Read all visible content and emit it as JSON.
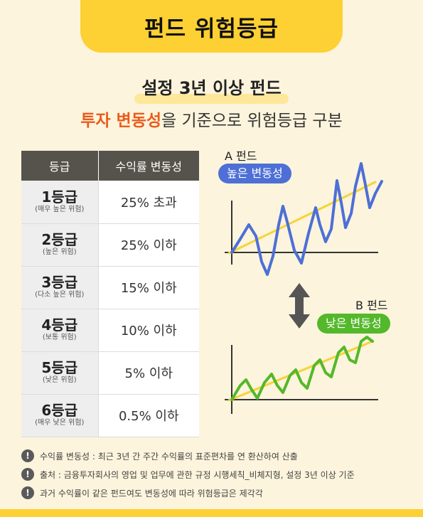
{
  "header": {
    "title": "펀드 위험등급"
  },
  "subtitle": "설정 3년 이상 펀드",
  "tagline": {
    "highlight": "투자 변동성",
    "rest": "을 기준으로 위험등급 구분"
  },
  "table": {
    "headers": [
      "등급",
      "수익률 변동성"
    ],
    "rows": [
      {
        "grade": "1등급",
        "desc": "(매우 높은 위험)",
        "value": "25% 초과"
      },
      {
        "grade": "2등급",
        "desc": "(높은 위험)",
        "value": "25% 이하"
      },
      {
        "grade": "3등급",
        "desc": "(다소 높은 위험)",
        "value": "15% 이하"
      },
      {
        "grade": "4등급",
        "desc": "(보통 위험)",
        "value": "10% 이하"
      },
      {
        "grade": "5등급",
        "desc": "(낮은 위험)",
        "value": "5% 이하"
      },
      {
        "grade": "6등급",
        "desc": "(매우 낮은 위험)",
        "value": "0.5% 이하"
      }
    ]
  },
  "fund_a": {
    "name": "A 펀드",
    "pill": "높은 변동성",
    "color": "#4d6fd6"
  },
  "fund_b": {
    "name": "B 펀드",
    "pill": "낮은 변동성",
    "color": "#54b82b"
  },
  "trend_color": "#f5d33a",
  "compare_icon": "up-down-arrow-icon",
  "notes": [
    "수익률 변동성 : 최근 3년 간 주간 수익률의 표준편차를 연 환산하여 산출",
    "출처 : 금융투자회사의 영업 및 업무에 관한 규정 시행세칙_비체지형, 설정 3년 이상 기준",
    "과거 수익률이 같은 펀드여도 변동성에 따라 위험등급은 제각각"
  ],
  "note_icon": "exclamation-icon"
}
